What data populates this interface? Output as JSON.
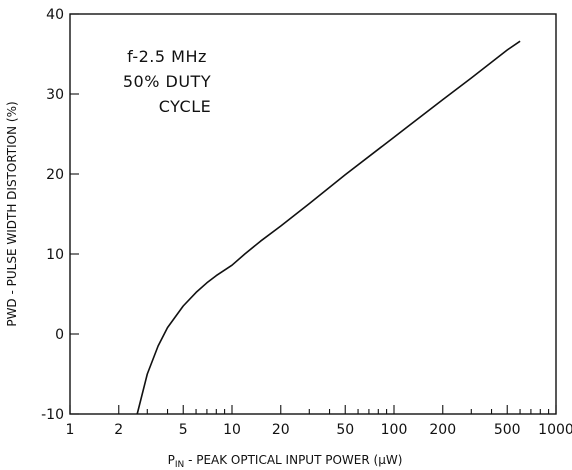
{
  "chart_data": {
    "type": "line",
    "title": "",
    "xlabel": "P",
    "xlabel_sub": "IN",
    "xlabel_rest": " - PEAK OPTICAL INPUT POWER (μW)",
    "ylabel": "PWD - PULSE WIDTH DISTORTION (%)",
    "x_scale": "log",
    "xlim": [
      1,
      1000
    ],
    "ylim": [
      -10,
      40
    ],
    "x_ticks": [
      1,
      2,
      5,
      10,
      20,
      50,
      100,
      200,
      500,
      1000
    ],
    "x_tick_labels": [
      "1",
      "2",
      "5",
      "10",
      "20",
      "50",
      "100",
      "200",
      "500",
      "1000"
    ],
    "y_ticks": [
      -10,
      0,
      10,
      20,
      30,
      40
    ],
    "y_tick_labels": [
      "-10",
      "0",
      "10",
      "20",
      "30",
      "40"
    ],
    "grid": false,
    "annotation": [
      "f-2.5 MHz",
      "50% DUTY",
      "CYCLE"
    ],
    "series": [
      {
        "x": [
          2.6,
          3,
          3.5,
          4,
          5,
          6,
          7,
          8,
          10,
          12,
          15,
          20,
          30,
          50,
          100,
          200,
          300,
          500,
          600
        ],
        "y": [
          -10,
          -5,
          -1.5,
          0.8,
          3.5,
          5.2,
          6.4,
          7.3,
          8.6,
          10.0,
          11.6,
          13.5,
          16.3,
          19.9,
          24.6,
          29.3,
          32.0,
          35.5,
          36.6
        ]
      }
    ],
    "line_color": "#111111"
  }
}
